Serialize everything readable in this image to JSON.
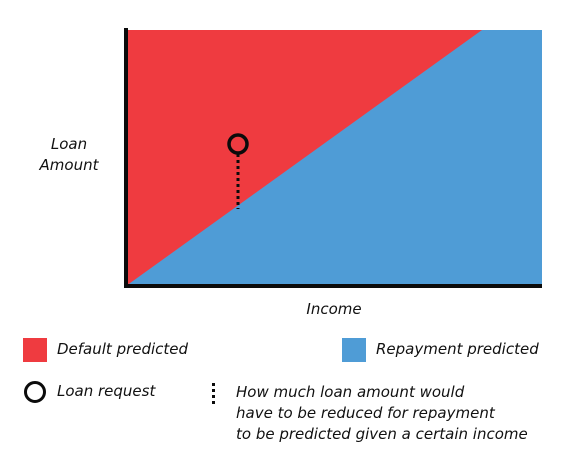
{
  "axes": {
    "y_label_line1": "Loan",
    "y_label_line2": "Amount",
    "x_label": "Income"
  },
  "regions": {
    "default": {
      "label": "Default predicted",
      "color": "#ef3b40"
    },
    "repayment": {
      "label": "Repayment predicted",
      "color": "#4f9cd6"
    }
  },
  "markers": {
    "loan_request": {
      "label": "Loan request",
      "icon": "circle-outline-icon"
    },
    "reduction": {
      "icon": "dotted-line-icon",
      "line1": "How much loan amount would",
      "line2": "have to be reduced for repayment",
      "line3": "to be predicted given a certain income"
    }
  }
}
